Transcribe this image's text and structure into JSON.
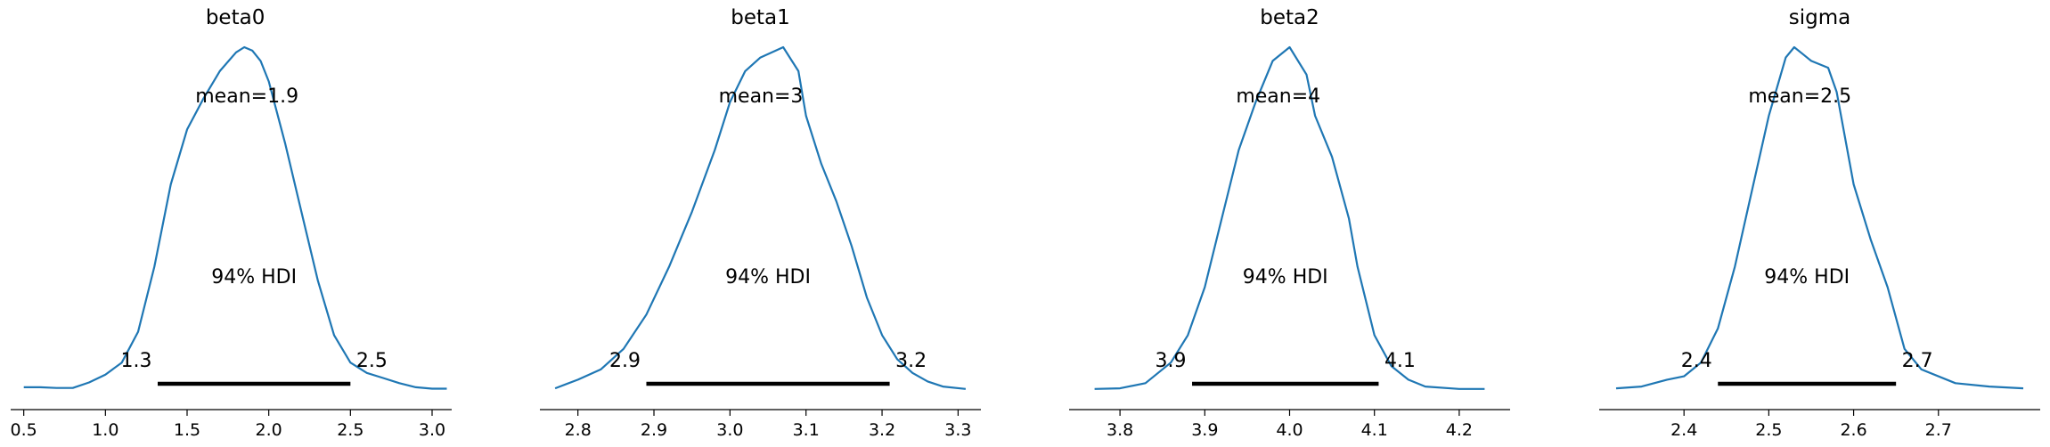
{
  "chart_data": [
    {
      "type": "area",
      "title": "beta0",
      "mean_label": "mean=1.9",
      "hdi_label": "94% HDI",
      "hdi_low": 1.32,
      "hdi_high": 2.5,
      "hdi_low_label": "1.3",
      "hdi_high_label": "2.5",
      "xlim": [
        0.42,
        3.12
      ],
      "xticks": [
        0.5,
        1.0,
        1.5,
        2.0,
        2.5,
        3.0
      ],
      "xtick_labels": [
        "0.5",
        "1.0",
        "1.5",
        "2.0",
        "2.5",
        "3.0"
      ],
      "density": {
        "x": [
          0.5,
          0.6,
          0.7,
          0.8,
          0.9,
          1.0,
          1.1,
          1.2,
          1.3,
          1.4,
          1.5,
          1.6,
          1.7,
          1.8,
          1.85,
          1.9,
          1.95,
          2.0,
          2.1,
          2.2,
          2.3,
          2.4,
          2.5,
          2.6,
          2.7,
          2.8,
          2.9,
          3.0,
          3.09
        ],
        "y": [
          0.008,
          0.008,
          0.006,
          0.006,
          0.022,
          0.045,
          0.08,
          0.17,
          0.36,
          0.6,
          0.76,
          0.85,
          0.93,
          0.985,
          1.0,
          0.99,
          0.96,
          0.9,
          0.72,
          0.52,
          0.32,
          0.16,
          0.08,
          0.05,
          0.035,
          0.02,
          0.008,
          0.004,
          0.004
        ]
      },
      "line_color": "#1f77b4",
      "hdi_color": "#000000"
    },
    {
      "type": "area",
      "title": "beta1",
      "mean_label": "mean=3",
      "hdi_label": "94% HDI",
      "hdi_low": 2.89,
      "hdi_high": 3.21,
      "hdi_low_label": "2.9",
      "hdi_high_label": "3.2",
      "xlim": [
        2.75,
        3.33
      ],
      "xticks": [
        2.8,
        2.9,
        3.0,
        3.1,
        3.2,
        3.3
      ],
      "xtick_labels": [
        "2.8",
        "2.9",
        "3.0",
        "3.1",
        "3.2",
        "3.3"
      ],
      "density": {
        "x": [
          2.77,
          2.8,
          2.83,
          2.86,
          2.89,
          2.92,
          2.95,
          2.98,
          3.0,
          3.02,
          3.04,
          3.06,
          3.07,
          3.09,
          3.1,
          3.12,
          3.14,
          3.16,
          3.18,
          3.2,
          3.22,
          3.24,
          3.26,
          3.28,
          3.31
        ],
        "y": [
          0.005,
          0.03,
          0.06,
          0.12,
          0.22,
          0.36,
          0.52,
          0.7,
          0.84,
          0.93,
          0.97,
          0.99,
          1.0,
          0.93,
          0.8,
          0.66,
          0.55,
          0.42,
          0.27,
          0.16,
          0.09,
          0.05,
          0.025,
          0.01,
          0.003
        ]
      },
      "line_color": "#1f77b4",
      "hdi_color": "#000000"
    },
    {
      "type": "area",
      "title": "beta2",
      "mean_label": "mean=4",
      "hdi_label": "94% HDI",
      "hdi_low": 3.885,
      "hdi_high": 4.105,
      "hdi_low_label": "3.9",
      "hdi_high_label": "4.1",
      "xlim": [
        3.74,
        4.26
      ],
      "xticks": [
        3.8,
        3.9,
        4.0,
        4.1,
        4.2
      ],
      "xtick_labels": [
        "3.8",
        "3.9",
        "4.0",
        "4.1",
        "4.2"
      ],
      "density": {
        "x": [
          3.77,
          3.8,
          3.83,
          3.86,
          3.88,
          3.9,
          3.92,
          3.94,
          3.96,
          3.98,
          4.0,
          4.02,
          4.03,
          4.05,
          4.07,
          4.08,
          4.1,
          4.12,
          4.14,
          4.16,
          4.2,
          4.23
        ],
        "y": [
          0.003,
          0.005,
          0.02,
          0.08,
          0.16,
          0.3,
          0.5,
          0.7,
          0.84,
          0.96,
          1.0,
          0.92,
          0.8,
          0.68,
          0.5,
          0.36,
          0.16,
          0.07,
          0.03,
          0.01,
          0.003,
          0.003
        ]
      },
      "line_color": "#1f77b4",
      "hdi_color": "#000000"
    },
    {
      "type": "area",
      "title": "sigma",
      "mean_label": "mean=2.5",
      "hdi_label": "94% HDI",
      "hdi_low": 2.44,
      "hdi_high": 2.65,
      "hdi_low_label": "2.4",
      "hdi_high_label": "2.7",
      "xlim": [
        2.3,
        2.82
      ],
      "xticks": [
        2.4,
        2.5,
        2.6,
        2.7
      ],
      "xtick_labels": [
        "2.4",
        "2.5",
        "2.6",
        "2.7"
      ],
      "density": {
        "x": [
          2.32,
          2.35,
          2.38,
          2.4,
          2.42,
          2.44,
          2.46,
          2.48,
          2.5,
          2.52,
          2.53,
          2.54,
          2.55,
          2.57,
          2.58,
          2.6,
          2.62,
          2.64,
          2.66,
          2.68,
          2.72,
          2.76,
          2.8
        ],
        "y": [
          0.005,
          0.01,
          0.03,
          0.04,
          0.08,
          0.18,
          0.36,
          0.58,
          0.8,
          0.97,
          1.0,
          0.98,
          0.96,
          0.94,
          0.87,
          0.6,
          0.44,
          0.3,
          0.12,
          0.06,
          0.02,
          0.01,
          0.005
        ]
      },
      "line_color": "#1f77b4",
      "hdi_color": "#000000"
    }
  ]
}
